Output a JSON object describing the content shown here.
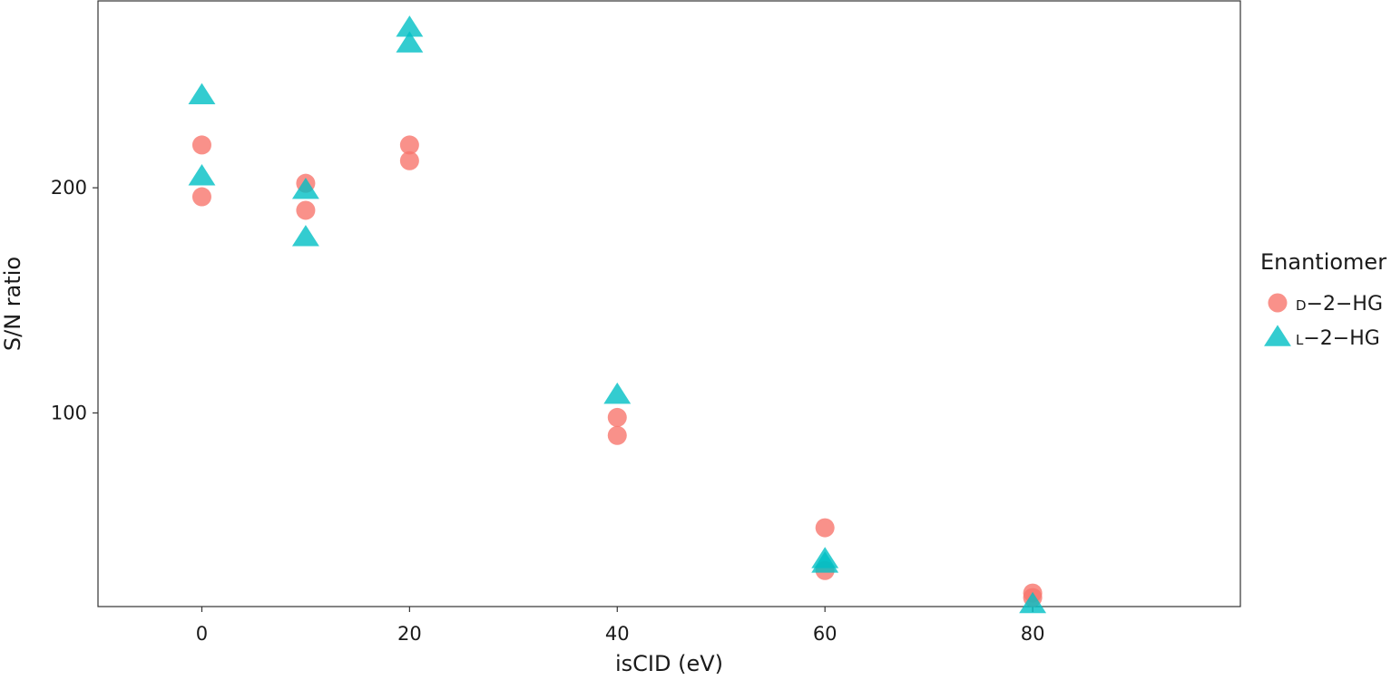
{
  "chart_data": {
    "type": "scatter",
    "xlabel": "isCID (eV)",
    "ylabel": "S/N ratio",
    "xlim": [
      -10,
      100
    ],
    "ylim": [
      14,
      283
    ],
    "x_ticks": [
      0,
      20,
      40,
      60,
      80
    ],
    "y_ticks": [
      100,
      200
    ],
    "grid": false,
    "legend": {
      "title": "Enantiomer",
      "placement": "right",
      "entries": [
        {
          "prefix": "D",
          "suffix": "−2−HG",
          "series_name": "D-2-HG",
          "marker": "circle"
        },
        {
          "prefix": "L",
          "suffix": "−2−HG",
          "series_name": "L-2-HG",
          "marker": "triangle"
        }
      ]
    },
    "series": [
      {
        "name": "D-2-HG",
        "marker": "circle",
        "color": "#F8766D",
        "points": [
          {
            "x": 0,
            "y": 219
          },
          {
            "x": 0,
            "y": 196
          },
          {
            "x": 10,
            "y": 202
          },
          {
            "x": 10,
            "y": 190
          },
          {
            "x": 20,
            "y": 219
          },
          {
            "x": 20,
            "y": 212
          },
          {
            "x": 40,
            "y": 98
          },
          {
            "x": 40,
            "y": 90
          },
          {
            "x": 60,
            "y": 49
          },
          {
            "x": 60,
            "y": 30
          },
          {
            "x": 80,
            "y": 20
          },
          {
            "x": 80,
            "y": 18
          }
        ]
      },
      {
        "name": "L-2-HG",
        "marker": "triangle",
        "color": "#00BFC4",
        "points": [
          {
            "x": 0,
            "y": 241
          },
          {
            "x": 0,
            "y": 205
          },
          {
            "x": 10,
            "y": 199
          },
          {
            "x": 10,
            "y": 178
          },
          {
            "x": 20,
            "y": 271
          },
          {
            "x": 20,
            "y": 264
          },
          {
            "x": 40,
            "y": 108
          },
          {
            "x": 60,
            "y": 35
          },
          {
            "x": 60,
            "y": 33
          },
          {
            "x": 80,
            "y": 15
          }
        ]
      }
    ]
  }
}
